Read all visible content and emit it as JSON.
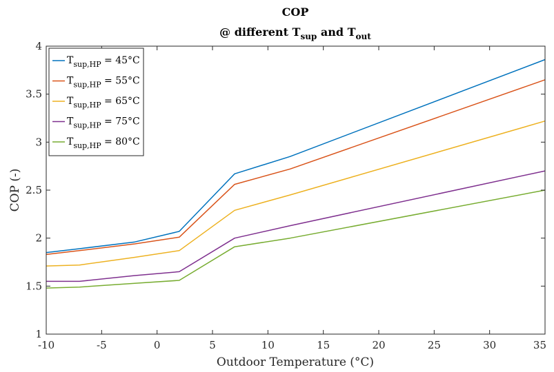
{
  "chart_data": {
    "type": "line",
    "title_line1": "COP",
    "title_line2": {
      "prefix": "@ different T",
      "sub1": "sup",
      "middle": " and T",
      "sub2": "out"
    },
    "xlabel": "Outdoor Temperature (°C)",
    "ylabel": "COP (-)",
    "xlim": [
      -10,
      35
    ],
    "ylim": [
      1,
      4
    ],
    "xticks": [
      -10,
      -5,
      0,
      5,
      10,
      15,
      20,
      25,
      30,
      35
    ],
    "yticks": [
      1,
      1.5,
      2,
      2.5,
      3,
      3.5,
      4
    ],
    "grid": false,
    "legend_position": "top-left",
    "x": [
      -10,
      -7,
      -2,
      2,
      7,
      12,
      35
    ],
    "series": [
      {
        "name_main": "T",
        "name_sub": "sup,HP",
        "name_rest": " = 45°C",
        "color": "#0072BD",
        "values": [
          1.85,
          1.89,
          1.96,
          2.07,
          2.67,
          2.85,
          3.86
        ]
      },
      {
        "name_main": "T",
        "name_sub": "sup,HP",
        "name_rest": " = 55°C",
        "color": "#D95319",
        "values": [
          1.83,
          1.87,
          1.94,
          2.01,
          2.56,
          2.72,
          3.65
        ]
      },
      {
        "name_main": "T",
        "name_sub": "sup,HP",
        "name_rest": " = 65°C",
        "color": "#EDB120",
        "values": [
          1.71,
          1.72,
          1.8,
          1.87,
          2.29,
          2.45,
          3.22
        ]
      },
      {
        "name_main": "T",
        "name_sub": "sup,HP",
        "name_rest": " = 75°C",
        "color": "#7E2F8E",
        "values": [
          1.55,
          1.55,
          1.61,
          1.65,
          2.0,
          2.13,
          2.7
        ]
      },
      {
        "name_main": "T",
        "name_sub": "sup,HP",
        "name_rest": " = 80°C",
        "color": "#77AC30",
        "values": [
          1.48,
          1.49,
          1.53,
          1.56,
          1.91,
          2.0,
          2.5
        ]
      }
    ]
  }
}
